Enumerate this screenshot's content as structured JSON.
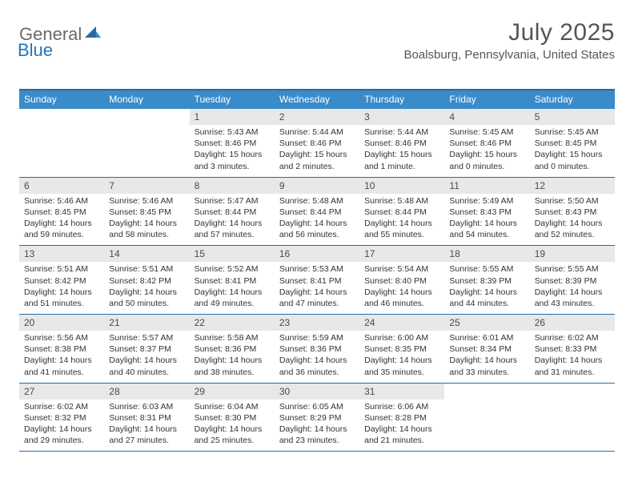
{
  "logo": {
    "general": "General",
    "blue": "Blue"
  },
  "header": {
    "month": "July 2025",
    "location": "Boalsburg, Pennsylvania, United States"
  },
  "colors": {
    "header_bar": "#3a8bc9",
    "header_border": "#2a6aa0",
    "daynum_bg": "#e8e8e8",
    "text_dark": "#333333",
    "text_mid": "#555555",
    "logo_gray": "#6a6a6a",
    "logo_blue": "#2176bd"
  },
  "day_names": [
    "Sunday",
    "Monday",
    "Tuesday",
    "Wednesday",
    "Thursday",
    "Friday",
    "Saturday"
  ],
  "weeks": [
    [
      {
        "empty": true
      },
      {
        "empty": true
      },
      {
        "num": "1",
        "sunrise": "Sunrise: 5:43 AM",
        "sunset": "Sunset: 8:46 PM",
        "dl1": "Daylight: 15 hours",
        "dl2": "and 3 minutes."
      },
      {
        "num": "2",
        "sunrise": "Sunrise: 5:44 AM",
        "sunset": "Sunset: 8:46 PM",
        "dl1": "Daylight: 15 hours",
        "dl2": "and 2 minutes."
      },
      {
        "num": "3",
        "sunrise": "Sunrise: 5:44 AM",
        "sunset": "Sunset: 8:46 PM",
        "dl1": "Daylight: 15 hours",
        "dl2": "and 1 minute."
      },
      {
        "num": "4",
        "sunrise": "Sunrise: 5:45 AM",
        "sunset": "Sunset: 8:46 PM",
        "dl1": "Daylight: 15 hours",
        "dl2": "and 0 minutes."
      },
      {
        "num": "5",
        "sunrise": "Sunrise: 5:45 AM",
        "sunset": "Sunset: 8:45 PM",
        "dl1": "Daylight: 15 hours",
        "dl2": "and 0 minutes."
      }
    ],
    [
      {
        "num": "6",
        "sunrise": "Sunrise: 5:46 AM",
        "sunset": "Sunset: 8:45 PM",
        "dl1": "Daylight: 14 hours",
        "dl2": "and 59 minutes."
      },
      {
        "num": "7",
        "sunrise": "Sunrise: 5:46 AM",
        "sunset": "Sunset: 8:45 PM",
        "dl1": "Daylight: 14 hours",
        "dl2": "and 58 minutes."
      },
      {
        "num": "8",
        "sunrise": "Sunrise: 5:47 AM",
        "sunset": "Sunset: 8:44 PM",
        "dl1": "Daylight: 14 hours",
        "dl2": "and 57 minutes."
      },
      {
        "num": "9",
        "sunrise": "Sunrise: 5:48 AM",
        "sunset": "Sunset: 8:44 PM",
        "dl1": "Daylight: 14 hours",
        "dl2": "and 56 minutes."
      },
      {
        "num": "10",
        "sunrise": "Sunrise: 5:48 AM",
        "sunset": "Sunset: 8:44 PM",
        "dl1": "Daylight: 14 hours",
        "dl2": "and 55 minutes."
      },
      {
        "num": "11",
        "sunrise": "Sunrise: 5:49 AM",
        "sunset": "Sunset: 8:43 PM",
        "dl1": "Daylight: 14 hours",
        "dl2": "and 54 minutes."
      },
      {
        "num": "12",
        "sunrise": "Sunrise: 5:50 AM",
        "sunset": "Sunset: 8:43 PM",
        "dl1": "Daylight: 14 hours",
        "dl2": "and 52 minutes."
      }
    ],
    [
      {
        "num": "13",
        "sunrise": "Sunrise: 5:51 AM",
        "sunset": "Sunset: 8:42 PM",
        "dl1": "Daylight: 14 hours",
        "dl2": "and 51 minutes."
      },
      {
        "num": "14",
        "sunrise": "Sunrise: 5:51 AM",
        "sunset": "Sunset: 8:42 PM",
        "dl1": "Daylight: 14 hours",
        "dl2": "and 50 minutes."
      },
      {
        "num": "15",
        "sunrise": "Sunrise: 5:52 AM",
        "sunset": "Sunset: 8:41 PM",
        "dl1": "Daylight: 14 hours",
        "dl2": "and 49 minutes."
      },
      {
        "num": "16",
        "sunrise": "Sunrise: 5:53 AM",
        "sunset": "Sunset: 8:41 PM",
        "dl1": "Daylight: 14 hours",
        "dl2": "and 47 minutes."
      },
      {
        "num": "17",
        "sunrise": "Sunrise: 5:54 AM",
        "sunset": "Sunset: 8:40 PM",
        "dl1": "Daylight: 14 hours",
        "dl2": "and 46 minutes."
      },
      {
        "num": "18",
        "sunrise": "Sunrise: 5:55 AM",
        "sunset": "Sunset: 8:39 PM",
        "dl1": "Daylight: 14 hours",
        "dl2": "and 44 minutes."
      },
      {
        "num": "19",
        "sunrise": "Sunrise: 5:55 AM",
        "sunset": "Sunset: 8:39 PM",
        "dl1": "Daylight: 14 hours",
        "dl2": "and 43 minutes."
      }
    ],
    [
      {
        "num": "20",
        "sunrise": "Sunrise: 5:56 AM",
        "sunset": "Sunset: 8:38 PM",
        "dl1": "Daylight: 14 hours",
        "dl2": "and 41 minutes."
      },
      {
        "num": "21",
        "sunrise": "Sunrise: 5:57 AM",
        "sunset": "Sunset: 8:37 PM",
        "dl1": "Daylight: 14 hours",
        "dl2": "and 40 minutes."
      },
      {
        "num": "22",
        "sunrise": "Sunrise: 5:58 AM",
        "sunset": "Sunset: 8:36 PM",
        "dl1": "Daylight: 14 hours",
        "dl2": "and 38 minutes."
      },
      {
        "num": "23",
        "sunrise": "Sunrise: 5:59 AM",
        "sunset": "Sunset: 8:36 PM",
        "dl1": "Daylight: 14 hours",
        "dl2": "and 36 minutes."
      },
      {
        "num": "24",
        "sunrise": "Sunrise: 6:00 AM",
        "sunset": "Sunset: 8:35 PM",
        "dl1": "Daylight: 14 hours",
        "dl2": "and 35 minutes."
      },
      {
        "num": "25",
        "sunrise": "Sunrise: 6:01 AM",
        "sunset": "Sunset: 8:34 PM",
        "dl1": "Daylight: 14 hours",
        "dl2": "and 33 minutes."
      },
      {
        "num": "26",
        "sunrise": "Sunrise: 6:02 AM",
        "sunset": "Sunset: 8:33 PM",
        "dl1": "Daylight: 14 hours",
        "dl2": "and 31 minutes."
      }
    ],
    [
      {
        "num": "27",
        "sunrise": "Sunrise: 6:02 AM",
        "sunset": "Sunset: 8:32 PM",
        "dl1": "Daylight: 14 hours",
        "dl2": "and 29 minutes."
      },
      {
        "num": "28",
        "sunrise": "Sunrise: 6:03 AM",
        "sunset": "Sunset: 8:31 PM",
        "dl1": "Daylight: 14 hours",
        "dl2": "and 27 minutes."
      },
      {
        "num": "29",
        "sunrise": "Sunrise: 6:04 AM",
        "sunset": "Sunset: 8:30 PM",
        "dl1": "Daylight: 14 hours",
        "dl2": "and 25 minutes."
      },
      {
        "num": "30",
        "sunrise": "Sunrise: 6:05 AM",
        "sunset": "Sunset: 8:29 PM",
        "dl1": "Daylight: 14 hours",
        "dl2": "and 23 minutes."
      },
      {
        "num": "31",
        "sunrise": "Sunrise: 6:06 AM",
        "sunset": "Sunset: 8:28 PM",
        "dl1": "Daylight: 14 hours",
        "dl2": "and 21 minutes."
      },
      {
        "empty": true
      },
      {
        "empty": true
      }
    ]
  ]
}
